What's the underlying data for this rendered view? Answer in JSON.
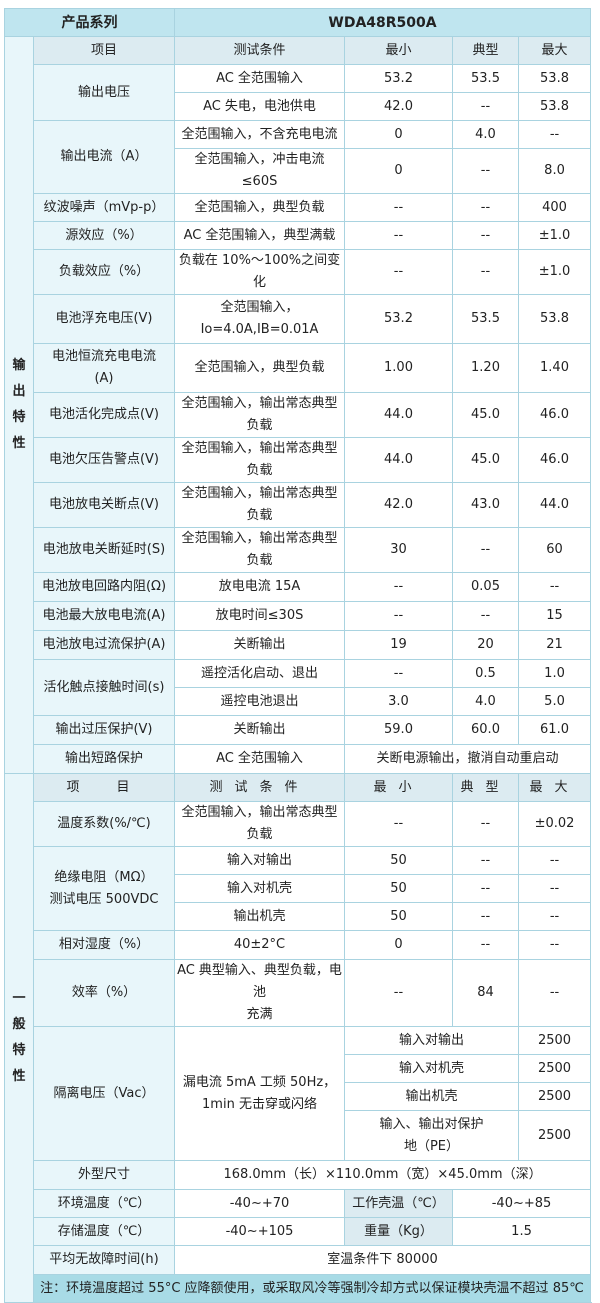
{
  "header": {
    "series_label": "产品系列",
    "model": "WDA48R500A"
  },
  "output": {
    "category": "输\n出\n特\n性",
    "columns": {
      "item": "项目",
      "condition": "测试条件",
      "min": "最小",
      "typ": "典型",
      "max": "最大"
    },
    "rows": [
      {
        "item": "输出电压",
        "cond": "AC 全范围输入",
        "min": "53.2",
        "typ": "53.5",
        "max": "53.8"
      },
      {
        "cond": "AC 失电，电池供电",
        "min": "42.0",
        "typ": "--",
        "max": "53.8"
      },
      {
        "item": "输出电流（A）",
        "cond": "全范围输入，不含充电电流",
        "min": "0",
        "typ": "4.0",
        "max": "--"
      },
      {
        "cond": "全范围输入，冲击电流≤60S",
        "min": "0",
        "typ": "--",
        "max": "8.0"
      },
      {
        "item": "纹波噪声（mVp-p）",
        "cond": "全范围输入，典型负载",
        "min": "--",
        "typ": "--",
        "max": "400"
      },
      {
        "item": "源效应（%）",
        "cond": "AC 全范围输入，典型满载",
        "min": "--",
        "typ": "--",
        "max": "±1.0"
      },
      {
        "item": "负载效应（%）",
        "cond": "负载在 10%～100%之间变化",
        "min": "--",
        "typ": "--",
        "max": "±1.0"
      },
      {
        "item": "电池浮充电压(V)",
        "cond": "全范围输入，\nIo=4.0A,IB=0.01A",
        "min": "53.2",
        "typ": "53.5",
        "max": "53.8"
      },
      {
        "item": "电池恒流充电电流\n(A)",
        "cond": "全范围输入，典型负载",
        "min": "1.00",
        "typ": "1.20",
        "max": "1.40"
      },
      {
        "item": "电池活化完成点(V)",
        "cond": "全范围输入，输出常态典型负载",
        "min": "44.0",
        "typ": "45.0",
        "max": "46.0"
      },
      {
        "item": "电池欠压告警点(V)",
        "cond": "全范围输入，输出常态典型负载",
        "min": "44.0",
        "typ": "45.0",
        "max": "46.0"
      },
      {
        "item": "电池放电关断点(V)",
        "cond": "全范围输入，输出常态典型负载",
        "min": "42.0",
        "typ": "43.0",
        "max": "44.0"
      },
      {
        "item": "电池放电关断延时(S)",
        "cond": "全范围输入，输出常态典型负载",
        "min": "30",
        "typ": "--",
        "max": "60"
      },
      {
        "item": "电池放电回路内阻(Ω)",
        "cond": "放电电流 15A",
        "min": "--",
        "typ": "0.05",
        "max": "--"
      },
      {
        "item": "电池最大放电电流(A)",
        "cond": "放电时间≤30S",
        "min": "--",
        "typ": "--",
        "max": "15"
      },
      {
        "item": "电池放电过流保护(A)",
        "cond": "关断输出",
        "min": "19",
        "typ": "20",
        "max": "21"
      },
      {
        "item": "活化触点接触时间(s)",
        "cond": "遥控活化启动、退出",
        "min": "--",
        "typ": "0.5",
        "max": "1.0"
      },
      {
        "cond": "遥控电池退出",
        "min": "3.0",
        "typ": "4.0",
        "max": "5.0"
      },
      {
        "item": "输出过压保护(V)",
        "cond": "关断输出",
        "min": "59.0",
        "typ": "60.0",
        "max": "61.0"
      },
      {
        "item": "输出短路保护",
        "cond": "AC 全范围输入",
        "result": "关断电源输出，撤消自动重启动"
      }
    ]
  },
  "general": {
    "category": "一\n般\n特\n性",
    "columns": {
      "item": "项　目",
      "condition": "测试条件",
      "min": "最小",
      "typ": "典型",
      "max": "最大"
    },
    "temp_coef": {
      "item": "温度系数(%/℃)",
      "cond": "全范围输入，输出常态典型负载",
      "min": "--",
      "typ": "--",
      "max": "±0.02"
    },
    "insulation": {
      "item": "绝缘电阻（MΩ）\n测试电压 500VDC",
      "rows": [
        {
          "cond": "输入对输出",
          "min": "50",
          "typ": "--",
          "max": "--"
        },
        {
          "cond": "输入对机壳",
          "min": "50",
          "typ": "--",
          "max": "--"
        },
        {
          "cond": "输出机壳",
          "min": "50",
          "typ": "--",
          "max": "--"
        }
      ]
    },
    "humidity": {
      "item": "相对湿度（%）",
      "cond": "40±2°C",
      "min": "0",
      "typ": "--",
      "max": "--"
    },
    "efficiency": {
      "item": "效率（%）",
      "cond": "AC 典型输入、典型负载，电池\n充满",
      "min": "--",
      "typ": "84",
      "max": "--"
    },
    "isolation": {
      "item": "隔离电压（Vac）",
      "cond": "漏电流 5mA 工频 50Hz，\n1min 无击穿或闪络",
      "rows": [
        {
          "label": "输入对输出",
          "value": "2500"
        },
        {
          "label": "输入对机壳",
          "value": "2500"
        },
        {
          "label": "输出机壳",
          "value": "2500"
        },
        {
          "label": "输入、输出对保护\n地（PE）",
          "value": "2500"
        }
      ]
    },
    "dimensions": {
      "item": "外型尺寸",
      "value": "168.0mm（长）×110.0mm（宽）×45.0mm（深）"
    },
    "ambient_temp": {
      "item": "环境温度（℃）",
      "value": "-40~+70",
      "item2": "工作壳温（℃）",
      "value2": "-40~+85"
    },
    "storage_temp": {
      "item": "存储温度（℃）",
      "value": "-40~+105",
      "item2": "重量（Kg）",
      "value2": "1.5"
    },
    "mtbf": {
      "item": "平均无故障时间(h)",
      "value": "室温条件下 80000"
    }
  },
  "note": "注：环境温度超过 55°C 应降额使用，或采取风冷等强制冷却方式以保证模块壳温不超过 85℃",
  "colors": {
    "header": "#bfe5ef",
    "label_bg": "#e8f6fa",
    "subheader": "#dcebf1",
    "note_bg": "#a8dbe6",
    "border": "#a9d3e0"
  }
}
